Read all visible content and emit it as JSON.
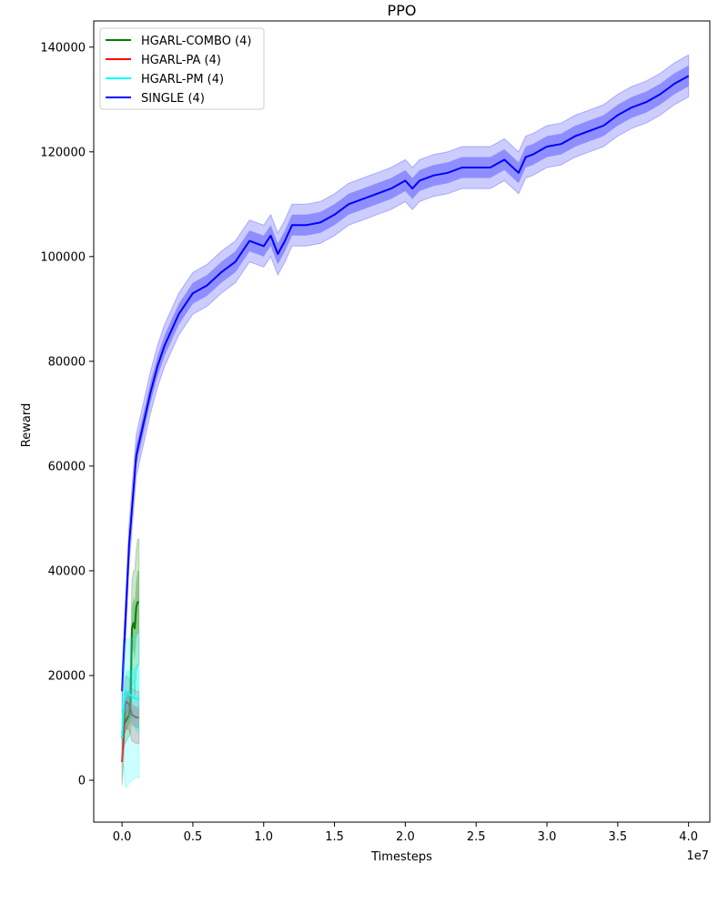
{
  "chart_data": {
    "type": "line",
    "title": "PPO",
    "xlabel": "Timesteps",
    "ylabel": "Reward",
    "x_offset_label": "1e7",
    "xlim": [
      -0.2,
      4.15
    ],
    "ylim": [
      -8000,
      145000
    ],
    "x_ticks": [
      0.0,
      0.5,
      1.0,
      1.5,
      2.0,
      2.5,
      3.0,
      3.5,
      4.0
    ],
    "x_tick_labels": [
      "0.0",
      "0.5",
      "1.0",
      "1.5",
      "2.0",
      "2.5",
      "3.0",
      "3.5",
      "4.0"
    ],
    "y_ticks": [
      0,
      20000,
      40000,
      60000,
      80000,
      100000,
      120000,
      140000
    ],
    "y_tick_labels": [
      "0",
      "20000",
      "40000",
      "60000",
      "80000",
      "100000",
      "120000",
      "140000"
    ],
    "grid": false,
    "legend_position": "top-left",
    "series": [
      {
        "name": "HGARL-COMBO (4)",
        "color": "#008000",
        "x": [
          0.0,
          0.02,
          0.04,
          0.05,
          0.06,
          0.07,
          0.08,
          0.09,
          0.1,
          0.11,
          0.12
        ],
        "y": [
          9000,
          11000,
          12000,
          12500,
          15000,
          29000,
          30000,
          29000,
          33000,
          34000,
          34000
        ],
        "inner_band": [
          [
            7000,
            11000
          ],
          [
            9000,
            13000
          ],
          [
            10000,
            14000
          ],
          [
            10500,
            15000
          ],
          [
            12000,
            18000
          ],
          [
            24000,
            33000
          ],
          [
            25000,
            35000
          ],
          [
            23000,
            34000
          ],
          [
            27000,
            38000
          ],
          [
            28000,
            40000
          ],
          [
            28000,
            40000
          ]
        ],
        "outer_band": [
          [
            5000,
            13000
          ],
          [
            7000,
            15000
          ],
          [
            8000,
            16000
          ],
          [
            8500,
            17000
          ],
          [
            9000,
            22000
          ],
          [
            18000,
            38000
          ],
          [
            19000,
            40000
          ],
          [
            16000,
            40000
          ],
          [
            21000,
            44000
          ],
          [
            22000,
            46000
          ],
          [
            22000,
            46000
          ]
        ]
      },
      {
        "name": "HGARL-PA (4)",
        "color": "#ff0000",
        "x": [
          0.0,
          0.01,
          0.02,
          0.03,
          0.05,
          0.07,
          0.1,
          0.12
        ],
        "y": [
          3500,
          8000,
          14000,
          15000,
          14500,
          12500,
          12000,
          12000
        ],
        "inner_band": [
          [
            2000,
            5000
          ],
          [
            6000,
            10000
          ],
          [
            12000,
            16000
          ],
          [
            13000,
            17000
          ],
          [
            12500,
            16500
          ],
          [
            10500,
            14500
          ],
          [
            10000,
            14000
          ],
          [
            10000,
            14000
          ]
        ],
        "outer_band": [
          [
            -1000,
            8000
          ],
          [
            3000,
            13000
          ],
          [
            9000,
            19000
          ],
          [
            10000,
            20000
          ],
          [
            9500,
            19500
          ],
          [
            7500,
            17500
          ],
          [
            7000,
            17000
          ],
          [
            7000,
            17000
          ]
        ]
      },
      {
        "name": "HGARL-PM (4)",
        "color": "#00ffff",
        "x": [
          0.0,
          0.01,
          0.02,
          0.03,
          0.05,
          0.07,
          0.1,
          0.12
        ],
        "y": [
          8000,
          13000,
          16500,
          17000,
          16500,
          16000,
          15500,
          15500
        ],
        "inner_band": [
          [
            5000,
            11000
          ],
          [
            10000,
            16000
          ],
          [
            13000,
            20000
          ],
          [
            13000,
            21000
          ],
          [
            12000,
            21000
          ],
          [
            11000,
            21000
          ],
          [
            9000,
            22000
          ],
          [
            9000,
            22000
          ]
        ],
        "outer_band": [
          [
            0,
            16000
          ],
          [
            3000,
            22000
          ],
          [
            -1000,
            26000
          ],
          [
            -1500,
            27000
          ],
          [
            -500,
            27000
          ],
          [
            0,
            27000
          ],
          [
            500,
            28000
          ],
          [
            500,
            28000
          ]
        ]
      },
      {
        "name": "SINGLE (4)",
        "color": "#0000ff",
        "x": [
          0.0,
          0.05,
          0.1,
          0.15,
          0.2,
          0.25,
          0.3,
          0.4,
          0.5,
          0.6,
          0.7,
          0.8,
          0.9,
          1.0,
          1.05,
          1.1,
          1.15,
          1.2,
          1.3,
          1.4,
          1.5,
          1.6,
          1.7,
          1.8,
          1.9,
          2.0,
          2.05,
          2.1,
          2.2,
          2.3,
          2.4,
          2.5,
          2.6,
          2.7,
          2.8,
          2.85,
          2.9,
          3.0,
          3.1,
          3.2,
          3.3,
          3.4,
          3.5,
          3.6,
          3.7,
          3.8,
          3.9,
          4.0
        ],
        "y": [
          17000,
          45000,
          62000,
          68000,
          74000,
          79000,
          83000,
          89000,
          93000,
          94500,
          97000,
          99000,
          103000,
          102000,
          104000,
          100500,
          103000,
          106000,
          106000,
          106500,
          108000,
          110000,
          111000,
          112000,
          113000,
          114500,
          113000,
          114500,
          115500,
          116000,
          117000,
          117000,
          117000,
          118500,
          116000,
          119000,
          119500,
          121000,
          121500,
          123000,
          124000,
          125000,
          127000,
          128500,
          129500,
          131000,
          133000,
          134500
        ],
        "inner_band_halfwidth": 2000,
        "outer_band_halfwidth": 4000
      }
    ]
  }
}
